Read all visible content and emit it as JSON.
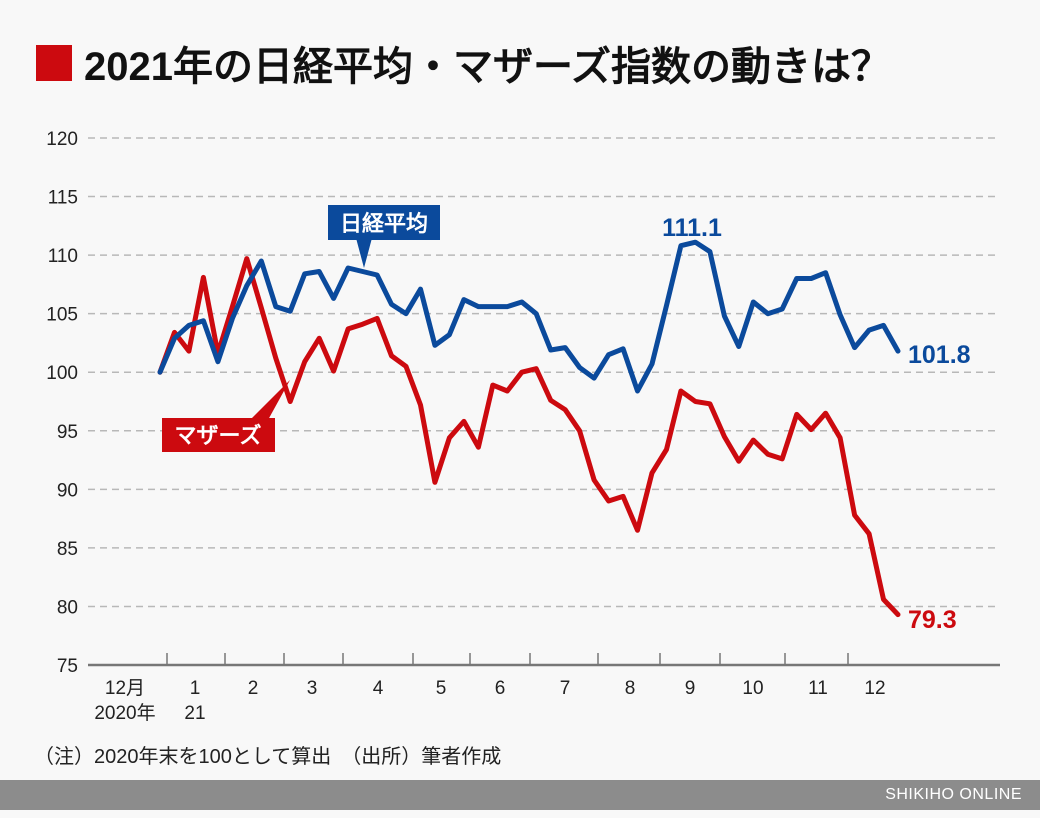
{
  "title": "2021年の日経平均・マザーズ指数の動きは？",
  "note": "（注）2020年末を100として算出　（出所）筆者作成",
  "footer": "SHIKIHO ONLINE",
  "chart_data": {
    "type": "line",
    "title": "2021年の日経平均・マザーズ指数の動きは？",
    "ylim": [
      75,
      120
    ],
    "yticks": [
      75,
      80,
      85,
      90,
      95,
      100,
      105,
      110,
      115,
      120
    ],
    "grid": true,
    "xtick_labels": [
      {
        "line1": "12月",
        "line2": "2020年"
      },
      {
        "line1": "1",
        "line2": "21"
      },
      {
        "line1": "2",
        "line2": ""
      },
      {
        "line1": "3",
        "line2": ""
      },
      {
        "line1": "4",
        "line2": ""
      },
      {
        "line1": "5",
        "line2": ""
      },
      {
        "line1": "6",
        "line2": ""
      },
      {
        "line1": "7",
        "line2": ""
      },
      {
        "line1": "8",
        "line2": ""
      },
      {
        "line1": "9",
        "line2": ""
      },
      {
        "line1": "10",
        "line2": ""
      },
      {
        "line1": "11",
        "line2": ""
      },
      {
        "line1": "12",
        "line2": ""
      }
    ],
    "series": [
      {
        "name": "日経平均",
        "color": "#0b4a9c",
        "values": [
          100,
          102.9,
          104,
          104.4,
          100.9,
          104.6,
          107.4,
          109.5,
          105.6,
          105.2,
          108.4,
          108.6,
          106.3,
          108.9,
          108.6,
          108.3,
          105.8,
          105,
          107.1,
          102.3,
          103.2,
          106.2,
          105.6,
          105.6,
          105.6,
          106,
          105,
          101.9,
          102.1,
          100.4,
          99.5,
          101.5,
          102,
          98.4,
          100.7,
          105.7,
          110.8,
          111.1,
          110.3,
          104.8,
          102.2,
          106,
          105,
          105.4,
          108,
          108,
          108.5,
          104.9,
          102.1,
          103.6,
          104,
          101.8
        ],
        "annotations": [
          {
            "label": "111.1",
            "index": 37
          },
          {
            "label": "101.8",
            "index": 51
          }
        ]
      },
      {
        "name": "マザーズ",
        "color": "#cc0a0f",
        "values": [
          100,
          103.4,
          101.8,
          108.1,
          101.6,
          105.6,
          109.7,
          105.5,
          101.2,
          97.5,
          100.9,
          102.9,
          100.1,
          103.7,
          104.1,
          104.6,
          101.4,
          100.5,
          97.2,
          90.6,
          94.4,
          95.8,
          93.6,
          98.9,
          98.4,
          100,
          100.3,
          97.6,
          96.8,
          95,
          90.8,
          89,
          89.4,
          86.5,
          91.4,
          93.4,
          98.4,
          97.5,
          97.3,
          94.5,
          92.4,
          94.2,
          93,
          92.6,
          96.4,
          95.1,
          96.5,
          94.4,
          87.8,
          86.2,
          80.6,
          79.3
        ],
        "annotations": [
          {
            "label": "79.3",
            "index": 51
          }
        ]
      }
    ]
  }
}
